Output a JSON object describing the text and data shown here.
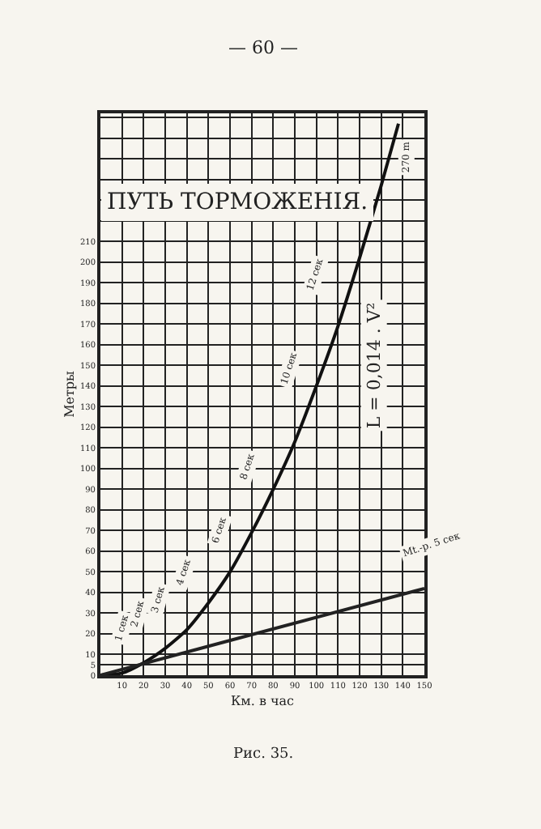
{
  "chart_data": {
    "type": "line",
    "title": "ПУТЬ ТОРМОЖЕНІЯ.",
    "subtitle": "— 60 —",
    "xlabel": "Км. в час",
    "ylabel": "Метры",
    "series": [
      {
        "color": "#111111",
        "x": [
          0,
          10,
          20,
          30,
          40,
          50,
          60,
          70,
          80,
          90,
          100,
          110,
          120,
          130,
          138
        ],
        "values": [
          0,
          1,
          6,
          13,
          22,
          35,
          50,
          69,
          90,
          113,
          140,
          169,
          202,
          237,
          267
        ]
      },
      {
        "color": "#222222",
        "x": [
          0,
          150
        ],
        "values": [
          0,
          42
        ]
      }
    ],
    "annotations": [
      "L = 0,014 . V²",
      "Mt.-p. 5 сек",
      "270 m",
      "1 сек",
      "2 сек",
      "3 сек",
      "4 сек",
      "6 сек",
      "8 сек",
      "10 сек",
      "12 сек",
      "Рис. 35."
    ],
    "xlim": [
      0,
      150
    ],
    "ylim": [
      0,
      272
    ],
    "xticks": [
      {
        "value": 0,
        "label": null
      },
      10,
      20,
      30,
      40,
      50,
      60,
      70,
      80,
      90,
      100,
      110,
      120,
      130,
      140,
      150
    ],
    "yticks": [
      0,
      5,
      10,
      20,
      30,
      40,
      50,
      60,
      70,
      80,
      90,
      100,
      110,
      120,
      130,
      140,
      150,
      160,
      170,
      180,
      190,
      200,
      210,
      {
        "value": 220,
        "label": null
      },
      {
        "value": 230,
        "label": null
      },
      {
        "value": 240,
        "label": null
      },
      {
        "value": 250,
        "label": null
      },
      {
        "value": 260,
        "label": null
      },
      {
        "value": 270,
        "label": null
      }
    ],
    "grid": true,
    "marker": "none",
    "line_style": "solid"
  }
}
